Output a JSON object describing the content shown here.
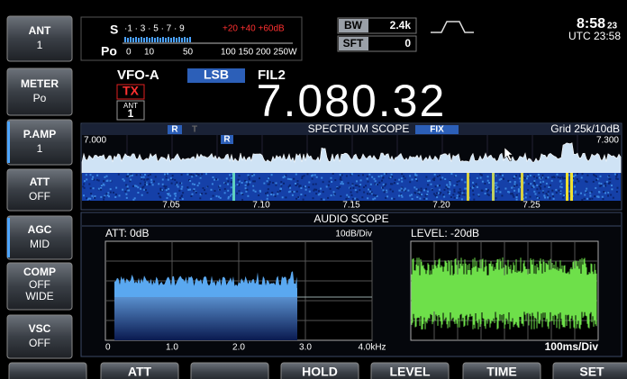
{
  "side_buttons": [
    {
      "label": "ANT",
      "value": "1"
    },
    {
      "label": "METER",
      "value": "Po"
    },
    {
      "label": "P.AMP",
      "value": "1"
    },
    {
      "label": "ATT",
      "value": "OFF"
    },
    {
      "label": "AGC",
      "value": "MID"
    },
    {
      "label": "COMP",
      "value": "OFF",
      "sub": "WIDE"
    },
    {
      "label": "VSC",
      "value": "OFF"
    }
  ],
  "meter": {
    "s_label": "S",
    "s_scale": "·1 · 3 · 5 · 7 · 9",
    "s_over": "+20 +40 +60dB",
    "po_label": "Po",
    "po_scale": [
      "0",
      "10",
      "50",
      "100 150 200 250W"
    ]
  },
  "bw": {
    "label": "BW",
    "value": "2.4k"
  },
  "sft": {
    "label": "SFT",
    "value": "0"
  },
  "clock": {
    "time": "8:58",
    "seconds": "23",
    "utc": "UTC 23:58"
  },
  "vfo": "VFO-A",
  "mode": "LSB",
  "filter": "FIL2",
  "tx": "TX",
  "ant": {
    "label": "ANT",
    "value": "1"
  },
  "frequency": "7.080.32",
  "spectrum": {
    "markers": [
      "R",
      "T"
    ],
    "title": "SPECTRUM SCOPE",
    "mode": "FIX",
    "grid": "Grid 25k/10dB",
    "start": "7.000",
    "end": "7.300",
    "marker": "R",
    "axis": [
      "7.05",
      "7.10",
      "7.15",
      "7.20",
      "7.25"
    ]
  },
  "audio": {
    "title": "AUDIO SCOPE",
    "att": "ATT: 0dB",
    "scale": "10dB/Div",
    "level": "LEVEL: -20dB",
    "axis": [
      "0",
      "1.0",
      "2.0",
      "3.0",
      "4.0kHz"
    ],
    "time": "100ms/Div"
  },
  "soft_keys": [
    "ATT",
    "HOLD",
    "LEVEL",
    "TIME",
    "SET"
  ]
}
